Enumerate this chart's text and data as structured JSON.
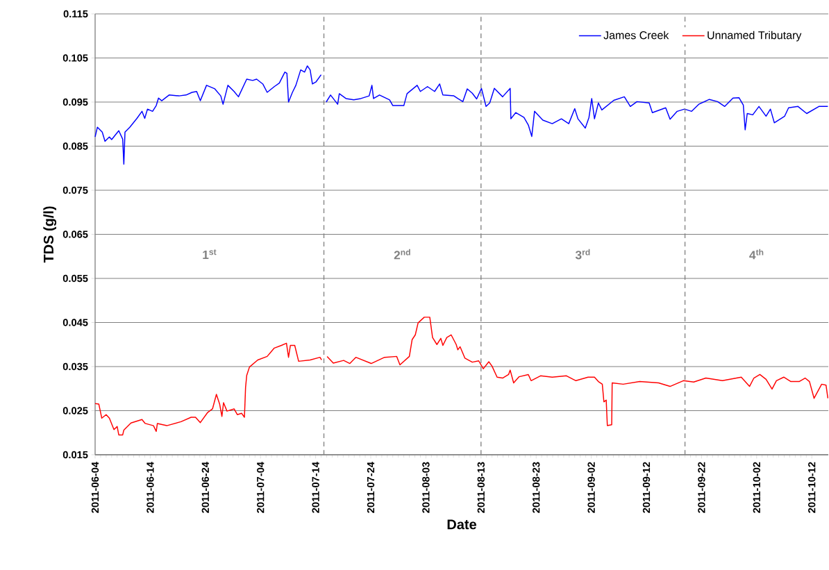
{
  "chart_data": {
    "type": "line",
    "xlabel": "Date",
    "ylabel": "TDS (g/l)",
    "xlim": [
      "2011-06-04",
      "2011-10-15"
    ],
    "xticks": [
      "2011-06-04",
      "2011-06-14",
      "2011-06-24",
      "2011-07-04",
      "2011-07-14",
      "2011-07-24",
      "2011-08-03",
      "2011-08-13",
      "2011-08-23",
      "2011-09-02",
      "2011-09-12",
      "2011-09-22",
      "2011-10-02",
      "2011-10-12"
    ],
    "ylim": [
      0.015,
      0.115
    ],
    "yticks": [
      0.015,
      0.025,
      0.035,
      0.045,
      0.055,
      0.065,
      0.075,
      0.085,
      0.095,
      0.105,
      0.115
    ],
    "grid": "y",
    "legend": "top right",
    "ref_lines": [
      {
        "axis": "x",
        "value": "2011-07-15T12:00",
        "color": "#808080",
        "line_style": "dashed"
      },
      {
        "axis": "x",
        "value": "2011-08-13",
        "color": "#808080",
        "line_style": "dashed"
      },
      {
        "axis": "x",
        "value": "2011-09-19",
        "color": "#808080",
        "line_style": "dashed"
      }
    ],
    "annotations": [
      "1$^{st}$",
      "2$^{nd}$",
      "3$^{rd}$",
      "4$^{th}$"
    ],
    "series": [
      {
        "name": "James Creek",
        "color": "#0000ff",
        "x": [
          "2011-06-04T00:00",
          "2011-06-04T10:00",
          "2011-06-05T07:00",
          "2011-06-05T19:00",
          "2011-06-06T14:00",
          "2011-06-07T00:00",
          "2011-06-08T07:00",
          "2011-06-09T00:00",
          "2011-06-09T05:00",
          "2011-06-09T10:00",
          "2011-06-10T07:00",
          "2011-06-11T14:00",
          "2011-06-12T12:00",
          "2011-06-13T00:00",
          "2011-06-13T12:00",
          "2011-06-14T10:00",
          "2011-06-15T02:00",
          "2011-06-15T12:00",
          "2011-06-16T02:00",
          "2011-06-17T10:00",
          "2011-06-19T05:00",
          "2011-06-20T12:00",
          "2011-06-21T14:00",
          "2011-06-22T10:00",
          "2011-06-23T02:00",
          "2011-06-24T05:00",
          "2011-06-25T17:00",
          "2011-06-26T19:00",
          "2011-06-27T05:00",
          "2011-06-28T02:00",
          "2011-06-29T05:00",
          "2011-06-30T00:00",
          "2011-07-01T12:00",
          "2011-07-02T14:00",
          "2011-07-03T07:00",
          "2011-07-04T10:00",
          "2011-07-05T05:00",
          "2011-07-06T12:00",
          "2011-07-07T10:00",
          "2011-07-08T10:00",
          "2011-07-08T19:00",
          "2011-07-09T02:00",
          "2011-07-09T19:00",
          "2011-07-10T10:00",
          "2011-07-11T07:00",
          "2011-07-12T00:00",
          "2011-07-12T12:00",
          "2011-07-13T00:00",
          "2011-07-13T10:00",
          "2011-07-14T02:00",
          "2011-07-15T00:00",
          "2011-07-15T12:00",
          "2011-07-15T22:00",
          "2011-07-16T17:00",
          "2011-07-18T00:00",
          "2011-07-18T07:00",
          "2011-07-19T12:00",
          "2011-07-20T22:00",
          "2011-07-22T05:00",
          "2011-07-23T17:00",
          "2011-07-24T05:00",
          "2011-07-24T12:00",
          "2011-07-25T14:00",
          "2011-07-27T10:00",
          "2011-07-28T00:00",
          "2011-07-30T00:00",
          "2011-07-30T14:00",
          "2011-08-01T10:00",
          "2011-08-02T00:00",
          "2011-08-03T07:00",
          "2011-08-04T14:00",
          "2011-08-05T12:00",
          "2011-08-06T02:00",
          "2011-08-08T02:00",
          "2011-08-08T19:00",
          "2011-08-09T17:00",
          "2011-08-10T12:00",
          "2011-08-11T10:00",
          "2011-08-12T05:00",
          "2011-08-13T02:00",
          "2011-08-13T22:00",
          "2011-08-14T14:00",
          "2011-08-15T10:00",
          "2011-08-16T22:00",
          "2011-08-18T07:00",
          "2011-08-18T10:00",
          "2011-08-19T07:00",
          "2011-08-20T19:00",
          "2011-08-21T14:00",
          "2011-08-22T05:00",
          "2011-08-22T17:00",
          "2011-08-24T05:00",
          "2011-08-25T22:00",
          "2011-08-27T14:00",
          "2011-08-28T22:00",
          "2011-08-30T00:00",
          "2011-08-30T14:00",
          "2011-08-31T22:00",
          "2011-09-01T14:00",
          "2011-09-02T02:00",
          "2011-09-02T14:00",
          "2011-09-03T07:00",
          "2011-09-03T22:00",
          "2011-09-06T02:00",
          "2011-09-08T00:00",
          "2011-09-09T02:00",
          "2011-09-10T07:00",
          "2011-09-12T12:00",
          "2011-09-13T02:00",
          "2011-09-15T12:00",
          "2011-09-16T07:00",
          "2011-09-17T14:00",
          "2011-09-18T22:00",
          "2011-09-20T05:00",
          "2011-09-21T12:00",
          "2011-09-23T10:00",
          "2011-09-24T22:00",
          "2011-09-26T05:00",
          "2011-09-27T17:00",
          "2011-09-28T19:00",
          "2011-09-29T14:00",
          "2011-09-29T22:00",
          "2011-09-30T07:00",
          "2011-10-01T07:00",
          "2011-10-02T10:00",
          "2011-10-03T17:00",
          "2011-10-04T12:00",
          "2011-10-05T05:00",
          "2011-10-07T02:00",
          "2011-10-07T19:00",
          "2011-10-09T12:00",
          "2011-10-11T02:00",
          "2011-10-13T07:00",
          "2011-10-14T22:00"
        ],
        "values": [
          0.0871,
          0.0893,
          0.0882,
          0.0861,
          0.0871,
          0.0865,
          0.0885,
          0.0866,
          0.0809,
          0.0882,
          0.0893,
          0.0913,
          0.0929,
          0.0913,
          0.0934,
          0.0929,
          0.0942,
          0.0959,
          0.0953,
          0.0966,
          0.0964,
          0.0966,
          0.0972,
          0.0974,
          0.0953,
          0.0988,
          0.098,
          0.0964,
          0.0945,
          0.0988,
          0.0974,
          0.0962,
          0.1002,
          0.0999,
          0.1002,
          0.0991,
          0.0972,
          0.0985,
          0.0993,
          0.1018,
          0.1015,
          0.095,
          0.0972,
          0.0988,
          0.1023,
          0.1018,
          0.1032,
          0.1023,
          0.0991,
          0.0996,
          0.1012,
          null,
          0.095,
          0.0966,
          0.0945,
          0.0969,
          0.0958,
          0.0955,
          0.0958,
          0.0964,
          0.0988,
          0.0958,
          0.0966,
          0.0955,
          0.0942,
          0.0942,
          0.0969,
          0.0988,
          0.0974,
          0.0985,
          0.0974,
          0.0991,
          0.0966,
          0.0964,
          0.0958,
          0.0951,
          0.098,
          0.097,
          0.0957,
          0.0981,
          0.094,
          0.0948,
          0.0981,
          0.0962,
          0.0981,
          0.0912,
          0.0926,
          0.0915,
          0.0898,
          0.0872,
          0.0929,
          0.0909,
          0.0901,
          0.0912,
          0.0901,
          0.0935,
          0.0912,
          0.0891,
          0.0915,
          0.0958,
          0.0912,
          0.0948,
          0.0932,
          0.0954,
          0.0962,
          0.094,
          0.0951,
          0.0948,
          0.0926,
          0.0937,
          0.0911,
          0.0929,
          0.0934,
          0.0929,
          0.0945,
          0.0956,
          0.0951,
          0.094,
          0.0959,
          0.096,
          0.0943,
          0.0887,
          0.0924,
          0.0921,
          0.094,
          0.0918,
          0.0934,
          0.0903,
          0.0918,
          0.0937,
          0.094,
          0.0924,
          0.094,
          0.094
        ]
      },
      {
        "name": "Unnamed Tributary",
        "color": "#ff0000",
        "x": [
          "2011-06-04T00:00",
          "2011-06-04T16:00",
          "2011-06-05T05:00",
          "2011-06-06T00:00",
          "2011-06-06T14:00",
          "2011-06-07T10:00",
          "2011-06-08T00:00",
          "2011-06-08T07:00",
          "2011-06-09T00:00",
          "2011-06-09T05:00",
          "2011-06-10T12:00",
          "2011-06-12T12:00",
          "2011-06-13T02:00",
          "2011-06-14T14:00",
          "2011-06-15T02:00",
          "2011-06-15T07:00",
          "2011-06-17T00:00",
          "2011-06-19T14:00",
          "2011-06-21T10:00",
          "2011-06-22T05:00",
          "2011-06-23T02:00",
          "2011-06-24T10:00",
          "2011-06-25T07:00",
          "2011-06-26T00:00",
          "2011-06-26T14:00",
          "2011-06-27T00:00",
          "2011-06-27T07:00",
          "2011-06-27T22:00",
          "2011-06-29T05:00",
          "2011-06-29T19:00",
          "2011-06-30T14:00",
          "2011-07-01T02:00",
          "2011-07-01T05:00",
          "2011-07-01T07:00",
          "2011-07-01T12:00",
          "2011-07-02T00:00",
          "2011-07-03T12:00",
          "2011-07-05T05:00",
          "2011-07-06T12:00",
          "2011-07-07T19:00",
          "2011-07-08T17:00",
          "2011-07-09T02:00",
          "2011-07-09T10:00",
          "2011-07-10T05:00",
          "2011-07-10T22:00",
          "2011-07-13T00:00",
          "2011-07-14T19:00",
          "2011-07-15T02:00",
          "2011-07-15T12:00",
          "2011-07-16T02:00",
          "2011-07-17T05:00",
          "2011-07-19T02:00",
          "2011-07-20T05:00",
          "2011-07-21T07:00",
          "2011-07-24T02:00",
          "2011-07-26T12:00",
          "2011-07-28T17:00",
          "2011-07-29T07:00",
          "2011-07-31T00:00",
          "2011-07-31T12:00",
          "2011-08-01T02:00",
          "2011-08-01T14:00",
          "2011-08-02T17:00",
          "2011-08-03T17:00",
          "2011-08-04T05:00",
          "2011-08-05T00:00",
          "2011-08-05T17:00",
          "2011-08-06T02:00",
          "2011-08-06T19:00",
          "2011-08-07T14:00",
          "2011-08-08T12:00",
          "2011-08-08T19:00",
          "2011-08-09T05:00",
          "2011-08-10T02:00",
          "2011-08-11T10:00",
          "2011-08-12T14:00",
          "2011-08-13T10:00",
          "2011-08-14T10:00",
          "2011-08-15T00:00",
          "2011-08-15T22:00",
          "2011-08-16T22:00",
          "2011-08-18T00:00",
          "2011-08-18T07:00",
          "2011-08-18T22:00",
          "2011-08-19T22:00",
          "2011-08-21T14:00",
          "2011-08-22T02:00",
          "2011-08-23T19:00",
          "2011-08-25T22:00",
          "2011-08-28T12:00",
          "2011-08-30T05:00",
          "2011-09-01T10:00",
          "2011-09-02T14:00",
          "2011-09-03T07:00",
          "2011-09-04T00:00",
          "2011-09-04T07:00",
          "2011-09-04T17:00",
          "2011-09-04T22:00",
          "2011-09-05T17:00",
          "2011-09-05T19:00",
          "2011-09-07T19:00",
          "2011-09-10T19:00",
          "2011-09-14T05:00",
          "2011-09-16T07:00",
          "2011-09-18T17:00",
          "2011-09-20T14:00",
          "2011-09-22T19:00",
          "2011-09-25T19:00",
          "2011-09-29T05:00",
          "2011-09-30T17:00",
          "2011-10-01T12:00",
          "2011-10-02T14:00",
          "2011-10-03T17:00",
          "2011-10-04T19:00",
          "2011-10-05T14:00",
          "2011-10-06T22:00",
          "2011-10-08T05:00",
          "2011-10-09T17:00",
          "2011-10-10T19:00",
          "2011-10-11T14:00",
          "2011-10-12T10:00",
          "2011-10-13T19:00",
          "2011-10-14T14:00",
          "2011-10-14T22:00"
        ],
        "values": [
          0.0266,
          0.0265,
          0.0233,
          0.0241,
          0.0233,
          0.0207,
          0.0214,
          0.0195,
          0.0195,
          0.0206,
          0.0222,
          0.023,
          0.0221,
          0.0216,
          0.0203,
          0.0221,
          0.0216,
          0.0225,
          0.0235,
          0.0235,
          0.0223,
          0.0246,
          0.0254,
          0.0287,
          0.0265,
          0.0237,
          0.0268,
          0.0249,
          0.0254,
          0.0241,
          0.0244,
          0.0235,
          0.0275,
          0.0303,
          0.033,
          0.0349,
          0.0365,
          0.0373,
          0.0392,
          0.0398,
          0.0403,
          0.0371,
          0.0398,
          0.0398,
          0.0362,
          0.0365,
          0.0371,
          0.0365,
          null,
          0.0373,
          0.0358,
          0.0364,
          0.0357,
          0.0371,
          0.0357,
          0.0371,
          0.0373,
          0.0354,
          0.0373,
          0.0411,
          0.0422,
          0.0449,
          0.0462,
          0.0462,
          0.0416,
          0.04,
          0.0414,
          0.0398,
          0.0416,
          0.0422,
          0.04,
          0.0388,
          0.0395,
          0.0369,
          0.036,
          0.0363,
          0.0345,
          0.0361,
          0.0351,
          0.0326,
          0.0324,
          0.0332,
          0.0342,
          0.0313,
          0.0327,
          0.0332,
          0.0318,
          0.0329,
          0.0326,
          0.0329,
          0.0318,
          0.0326,
          0.0326,
          0.0316,
          0.031,
          0.027,
          0.0274,
          0.0216,
          0.0218,
          0.0313,
          0.031,
          0.0316,
          0.0313,
          0.0305,
          0.0318,
          0.0315,
          0.0324,
          0.0318,
          0.0326,
          0.0305,
          0.0324,
          0.0332,
          0.0321,
          0.0299,
          0.0318,
          0.0326,
          0.0316,
          0.0316,
          0.0324,
          0.0316,
          0.0278,
          0.031,
          0.0308,
          0.0278
        ]
      }
    ]
  }
}
